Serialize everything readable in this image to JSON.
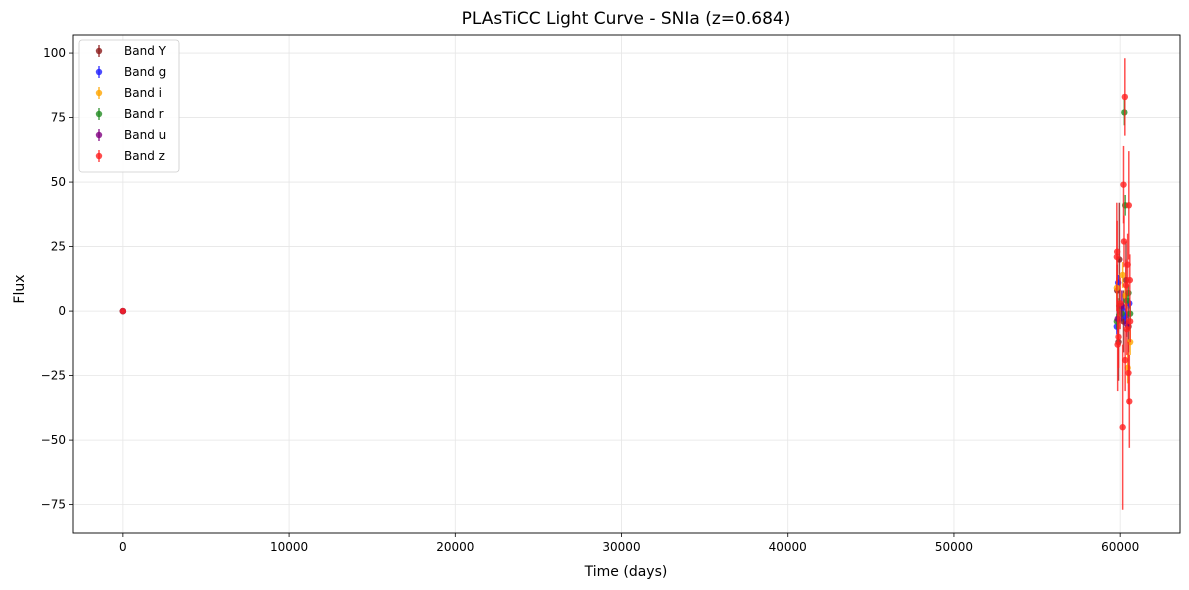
{
  "chart_data": {
    "type": "scatter",
    "title": "PLAsTiCC Light Curve - SNIa (z=0.684)",
    "xlabel": "Time (days)",
    "ylabel": "Flux",
    "xlim": [
      -3000,
      63600
    ],
    "ylim": [
      -86,
      107
    ],
    "xticks": [
      0,
      10000,
      20000,
      30000,
      40000,
      50000,
      60000
    ],
    "yticks": [
      -75,
      -50,
      -25,
      0,
      25,
      50,
      75,
      100
    ],
    "grid": true,
    "legend_position": "top-left",
    "series": [
      {
        "name": "Band Y",
        "color": "#8b1a1a",
        "points": [
          {
            "x": 0,
            "y": 0,
            "err": 0.3
          },
          {
            "x": 59820,
            "y": 8,
            "err": 10
          },
          {
            "x": 59900,
            "y": -12,
            "err": 15
          },
          {
            "x": 59950,
            "y": 20,
            "err": 22
          },
          {
            "x": 60200,
            "y": -4,
            "err": 12
          },
          {
            "x": 60350,
            "y": 12,
            "err": 15
          },
          {
            "x": 60500,
            "y": -6,
            "err": 10
          }
        ]
      },
      {
        "name": "Band g",
        "color": "#1f1fff",
        "points": [
          {
            "x": 0,
            "y": 0,
            "err": 0.3
          },
          {
            "x": 59800,
            "y": -6,
            "err": 3
          },
          {
            "x": 59880,
            "y": 11,
            "err": 3
          },
          {
            "x": 60100,
            "y": 1,
            "err": 2
          },
          {
            "x": 60300,
            "y": -2,
            "err": 3
          },
          {
            "x": 60550,
            "y": 3,
            "err": 2
          }
        ]
      },
      {
        "name": "Band i",
        "color": "#ffa500",
        "points": [
          {
            "x": 0,
            "y": 0,
            "err": 0.3
          },
          {
            "x": 59800,
            "y": 9,
            "err": 4
          },
          {
            "x": 59950,
            "y": -2,
            "err": 5
          },
          {
            "x": 60150,
            "y": 14,
            "err": 5
          },
          {
            "x": 60300,
            "y": 6,
            "err": 4
          },
          {
            "x": 60450,
            "y": -22,
            "err": 6
          },
          {
            "x": 60600,
            "y": -12,
            "err": 5
          }
        ]
      },
      {
        "name": "Band r",
        "color": "#228b22",
        "points": [
          {
            "x": 0,
            "y": 0,
            "err": 0.3
          },
          {
            "x": 59800,
            "y": -4,
            "err": 3
          },
          {
            "x": 59950,
            "y": 2,
            "err": 3
          },
          {
            "x": 60100,
            "y": -1,
            "err": 3
          },
          {
            "x": 60250,
            "y": 77,
            "err": 5
          },
          {
            "x": 60300,
            "y": 41,
            "err": 4
          },
          {
            "x": 60400,
            "y": 4,
            "err": 3
          },
          {
            "x": 60500,
            "y": 7,
            "err": 3
          },
          {
            "x": 60600,
            "y": -1,
            "err": 3
          }
        ]
      },
      {
        "name": "Band u",
        "color": "#800080",
        "points": [
          {
            "x": 0,
            "y": 0,
            "err": 0.3
          },
          {
            "x": 59850,
            "y": -3,
            "err": 5
          },
          {
            "x": 60100,
            "y": 2,
            "err": 6
          },
          {
            "x": 60400,
            "y": -5,
            "err": 5
          }
        ]
      },
      {
        "name": "Band z",
        "color": "#ff2020",
        "points": [
          {
            "x": 0,
            "y": 0,
            "err": 0.3
          },
          {
            "x": 59800,
            "y": 21,
            "err": 21
          },
          {
            "x": 59820,
            "y": 23,
            "err": 12
          },
          {
            "x": 59850,
            "y": -13,
            "err": 18
          },
          {
            "x": 59900,
            "y": -10,
            "err": 12
          },
          {
            "x": 60000,
            "y": 3,
            "err": 10
          },
          {
            "x": 60150,
            "y": -45,
            "err": 32
          },
          {
            "x": 60200,
            "y": 49,
            "err": 15
          },
          {
            "x": 60230,
            "y": 27,
            "err": 10
          },
          {
            "x": 60280,
            "y": 83,
            "err": 15
          },
          {
            "x": 60300,
            "y": -19,
            "err": 12
          },
          {
            "x": 60350,
            "y": 10,
            "err": 10
          },
          {
            "x": 60400,
            "y": -7,
            "err": 10
          },
          {
            "x": 60450,
            "y": 18,
            "err": 12
          },
          {
            "x": 60500,
            "y": -24,
            "err": 12
          },
          {
            "x": 60520,
            "y": 41,
            "err": 21
          },
          {
            "x": 60550,
            "y": -35,
            "err": 18
          },
          {
            "x": 60580,
            "y": 12,
            "err": 10
          },
          {
            "x": 60600,
            "y": -4,
            "err": 8
          }
        ]
      }
    ]
  }
}
